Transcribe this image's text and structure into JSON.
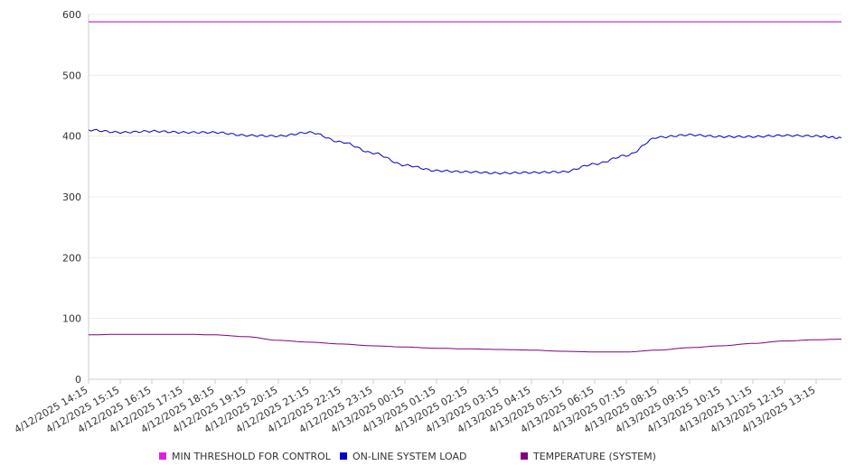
{
  "chart_data": {
    "type": "line",
    "title": "",
    "xlabel": "",
    "ylabel": "",
    "ylim": [
      0,
      600
    ],
    "y_ticks": [
      0,
      100,
      200,
      300,
      400,
      500,
      600
    ],
    "grid": true,
    "legend_position": "bottom",
    "x_tick_labels": [
      "4/12/2025 14:15",
      "4/12/2025 15:15",
      "4/12/2025 16:15",
      "4/12/2025 17:15",
      "4/12/2025 18:15",
      "4/12/2025 19:15",
      "4/12/2025 20:15",
      "4/12/2025 21:15",
      "4/12/2025 22:15",
      "4/12/2025 23:15",
      "4/13/2025 00:15",
      "4/13/2025 01:15",
      "4/13/2025 02:15",
      "4/13/2025 03:15",
      "4/13/2025 04:15",
      "4/13/2025 05:15",
      "4/13/2025 06:15",
      "4/13/2025 07:15",
      "4/13/2025 08:15",
      "4/13/2025 09:15",
      "4/13/2025 10:15",
      "4/13/2025 11:15",
      "4/13/2025 12:15",
      "4/13/2025 13:15"
    ],
    "x": [
      "4/12/2025 14:15",
      "4/12/2025 15:15",
      "4/12/2025 16:15",
      "4/12/2025 17:15",
      "4/12/2025 18:15",
      "4/12/2025 19:15",
      "4/12/2025 20:15",
      "4/12/2025 21:15",
      "4/12/2025 22:15",
      "4/12/2025 23:15",
      "4/13/2025 00:15",
      "4/13/2025 01:15",
      "4/13/2025 02:15",
      "4/13/2025 03:15",
      "4/13/2025 04:15",
      "4/13/2025 05:15",
      "4/13/2025 06:15",
      "4/13/2025 07:15",
      "4/13/2025 08:15",
      "4/13/2025 09:15",
      "4/13/2025 10:15",
      "4/13/2025 11:15",
      "4/13/2025 12:15",
      "4/13/2025 13:15",
      "4/13/2025 14:00"
    ],
    "series": [
      {
        "name": "MIN THRESHOLD FOR CONTROL",
        "color": "#b000b0",
        "values": [
          588,
          588,
          588,
          588,
          588,
          588,
          588,
          588,
          588,
          588,
          588,
          588,
          588,
          588,
          588,
          588,
          588,
          588,
          588,
          588,
          588,
          588,
          588,
          588,
          588
        ]
      },
      {
        "name": "ON-LINE SYSTEM LOAD",
        "color": "#0000cc",
        "values": [
          410,
          406,
          408,
          406,
          406,
          401,
          400,
          406,
          390,
          372,
          352,
          343,
          341,
          339,
          340,
          341,
          354,
          368,
          398,
          402,
          399,
          399,
          401,
          400,
          397
        ]
      },
      {
        "name": "TEMPERATURE (SYSTEM)",
        "color": "#800080",
        "values": [
          73,
          74,
          74,
          74,
          73,
          70,
          64,
          61,
          58,
          55,
          53,
          51,
          50,
          49,
          48,
          46,
          45,
          45,
          48,
          52,
          55,
          59,
          63,
          65,
          66
        ]
      }
    ]
  }
}
